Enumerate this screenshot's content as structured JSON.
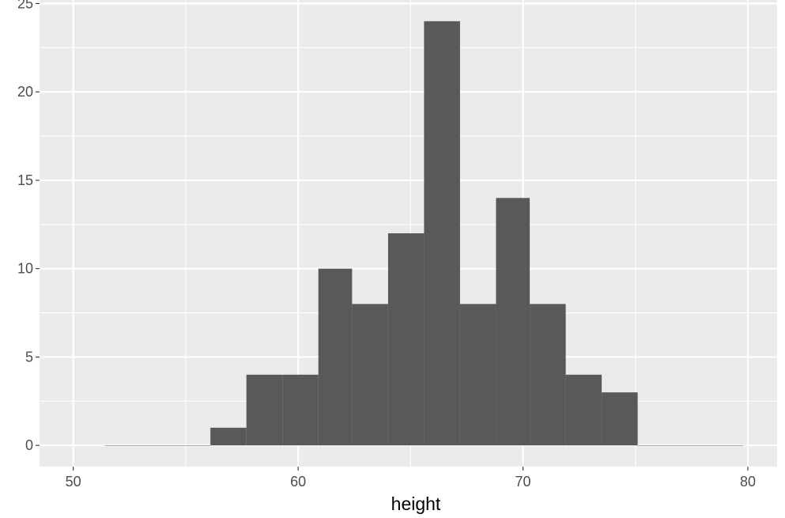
{
  "chart_data": {
    "type": "histogram",
    "title": "",
    "xlabel": "height",
    "ylabel": "",
    "xlim": [
      48.5,
      81.3
    ],
    "ylim": [
      -1.2,
      25.2
    ],
    "x_ticks": [
      50,
      60,
      70,
      80
    ],
    "y_ticks": [
      0,
      5,
      10,
      15,
      20,
      25
    ],
    "x_minor_ticks": [
      55,
      65,
      75
    ],
    "y_minor_ticks": [
      2.5,
      7.5,
      12.5,
      17.5,
      22.5
    ],
    "bins": [
      {
        "x0": 51.4,
        "x1": 53.0,
        "count": 0
      },
      {
        "x0": 53.0,
        "x1": 54.5,
        "count": 0
      },
      {
        "x0": 54.5,
        "x1": 56.1,
        "count": 0
      },
      {
        "x0": 56.1,
        "x1": 57.7,
        "count": 1
      },
      {
        "x0": 57.7,
        "x1": 59.3,
        "count": 4
      },
      {
        "x0": 59.3,
        "x1": 60.9,
        "count": 4
      },
      {
        "x0": 60.9,
        "x1": 62.4,
        "count": 10
      },
      {
        "x0": 62.4,
        "x1": 64.0,
        "count": 8
      },
      {
        "x0": 64.0,
        "x1": 65.6,
        "count": 12
      },
      {
        "x0": 65.6,
        "x1": 67.2,
        "count": 24
      },
      {
        "x0": 67.2,
        "x1": 68.8,
        "count": 8
      },
      {
        "x0": 68.8,
        "x1": 70.3,
        "count": 14
      },
      {
        "x0": 70.3,
        "x1": 71.9,
        "count": 8
      },
      {
        "x0": 71.9,
        "x1": 73.5,
        "count": 4
      },
      {
        "x0": 73.5,
        "x1": 75.1,
        "count": 3
      },
      {
        "x0": 75.1,
        "x1": 76.7,
        "count": 0
      },
      {
        "x0": 76.7,
        "x1": 78.2,
        "count": 0
      },
      {
        "x0": 78.2,
        "x1": 79.8,
        "count": 0
      }
    ],
    "grid": true,
    "legend": "none",
    "colors": {
      "panel_background": "#ebebeb",
      "grid_major": "#ffffff",
      "bar_fill": "#595959",
      "tick_text": "#4d4d4d",
      "tick_mark": "#333333",
      "axis_title": "#000000"
    }
  }
}
